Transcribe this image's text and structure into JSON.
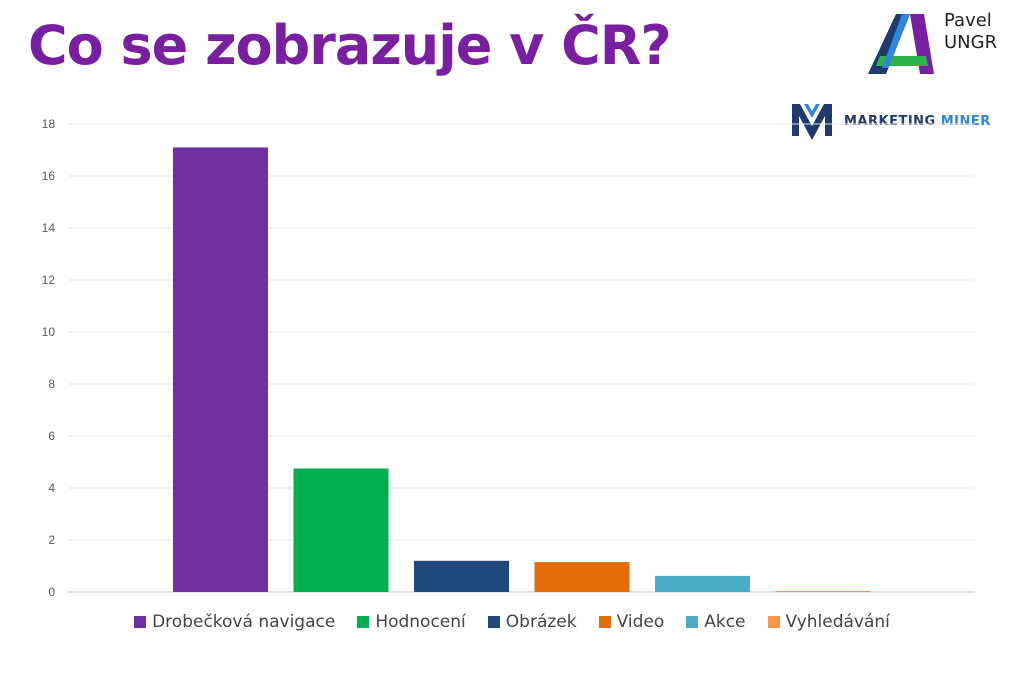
{
  "slide": {
    "title": "Co se zobrazuje v ČR?"
  },
  "brand": {
    "line1": "Pavel",
    "line2": "UNGR"
  },
  "marketing_miner": {
    "word1": "MARKETING",
    "word2": "MINER"
  },
  "chart_data": {
    "type": "bar",
    "title": "",
    "xlabel": "",
    "ylabel": "",
    "ylim": [
      0,
      18
    ],
    "yticks": [
      0,
      2,
      4,
      6,
      8,
      10,
      12,
      14,
      16,
      18
    ],
    "grid": true,
    "legend_position": "bottom",
    "series": [
      {
        "name": "Drobečková navigace",
        "values": [
          17.1
        ],
        "color": "#7030a0"
      },
      {
        "name": "Hodnocení",
        "values": [
          4.75
        ],
        "color": "#00b050"
      },
      {
        "name": "Obrázek",
        "values": [
          1.2
        ],
        "color": "#1f497d"
      },
      {
        "name": "Video",
        "values": [
          1.15
        ],
        "color": "#e36c09"
      },
      {
        "name": "Akce",
        "values": [
          0.62
        ],
        "color": "#4bacc6"
      },
      {
        "name": "Vyhledávání",
        "values": [
          0.03
        ],
        "color": "#f79646"
      }
    ]
  }
}
